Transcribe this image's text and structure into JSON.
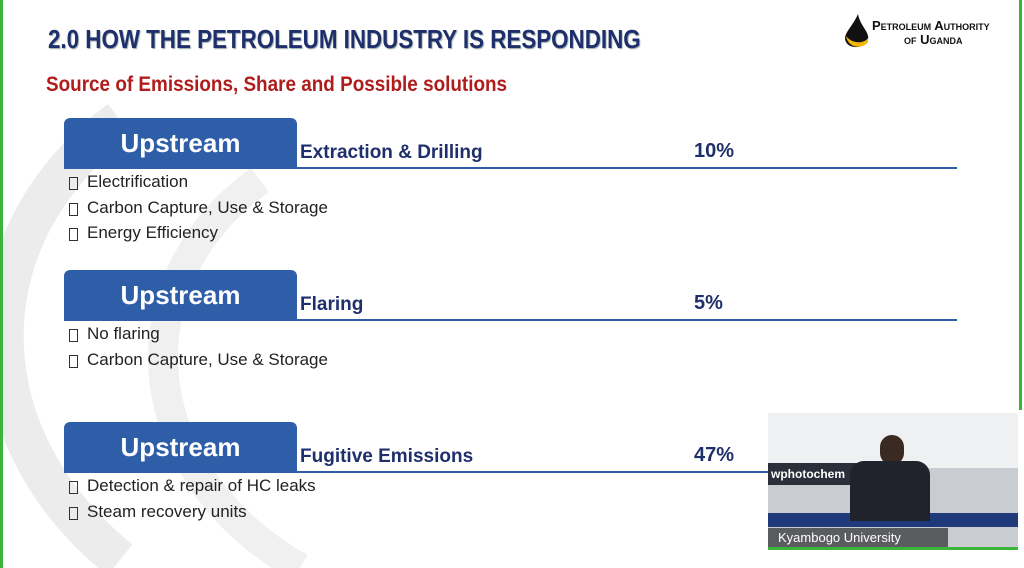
{
  "header": {
    "title": "2.0 HOW THE PETROLEUM INDUSTRY IS RESPONDING",
    "subtitle": "Source of Emissions, Share and Possible solutions"
  },
  "logo": {
    "line1": "Petroleum Authority",
    "line2": "of Uganda"
  },
  "sections": [
    {
      "tab": "Upstream",
      "source": "Extraction & Drilling",
      "share": "10%",
      "solutions": [
        "Electrification",
        "Carbon Capture, Use & Storage",
        "Energy Efficiency"
      ]
    },
    {
      "tab": "Upstream",
      "source": "Flaring",
      "share": "5%",
      "solutions": [
        "No flaring",
        "Carbon Capture, Use & Storage"
      ]
    },
    {
      "tab": "Upstream",
      "source": "Fugitive Emissions",
      "share": "47%",
      "solutions": [
        "Detection & repair of HC leaks",
        "Steam recovery units"
      ]
    }
  ],
  "video": {
    "banner": "wphotochem",
    "participant": "Kyambogo University"
  }
}
